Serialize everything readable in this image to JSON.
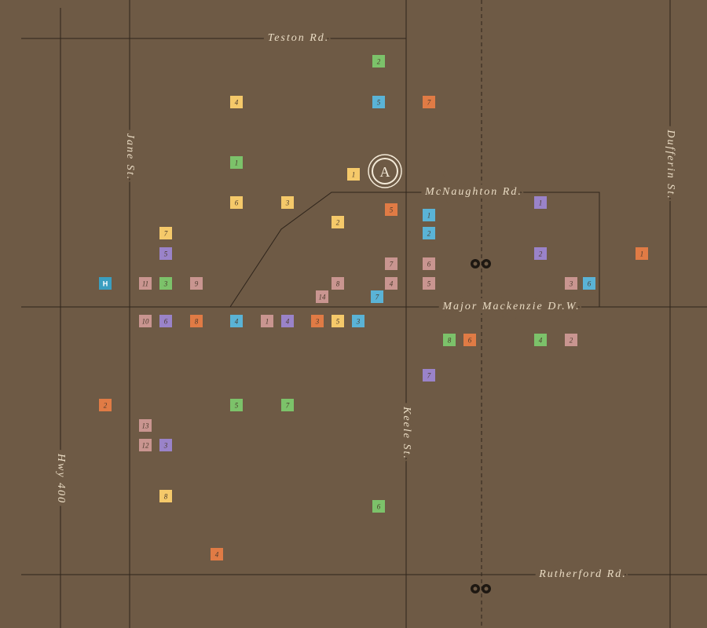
{
  "roads": [
    {
      "name": "Teston Rd."
    },
    {
      "name": "McNaughton Rd."
    },
    {
      "name": "Major Mackenzie Dr.W."
    },
    {
      "name": "Rutherford Rd."
    },
    {
      "name": "Jane St."
    },
    {
      "name": "Keele St."
    },
    {
      "name": "Dufferin St."
    },
    {
      "name": "Hwy 400"
    }
  ],
  "landmark": {
    "label": "A"
  },
  "markers": [
    {
      "label": "2",
      "color": "#7cc26a"
    },
    {
      "label": "4",
      "color": "#f5c96a"
    },
    {
      "label": "5",
      "color": "#5ab3d6"
    },
    {
      "label": "7",
      "color": "#e07b45"
    },
    {
      "label": "1",
      "color": "#7cc26a"
    },
    {
      "label": "1",
      "color": "#f5c96a"
    },
    {
      "label": "6",
      "color": "#f5c96a"
    },
    {
      "label": "3",
      "color": "#f5c96a"
    },
    {
      "label": "5",
      "color": "#e07b45"
    },
    {
      "label": "1",
      "color": "#5ab3d6"
    },
    {
      "label": "1",
      "color": "#9a83c9"
    },
    {
      "label": "2",
      "color": "#f5c96a"
    },
    {
      "label": "2",
      "color": "#5ab3d6"
    },
    {
      "label": "7",
      "color": "#f5c96a"
    },
    {
      "label": "5",
      "color": "#9a83c9"
    },
    {
      "label": "2",
      "color": "#9a83c9"
    },
    {
      "label": "1",
      "color": "#e07b45"
    },
    {
      "label": "7",
      "color": "#c99590"
    },
    {
      "label": "6",
      "color": "#c99590"
    },
    {
      "label": "H",
      "color": "#3a9ec0"
    },
    {
      "label": "11",
      "color": "#c99590"
    },
    {
      "label": "3",
      "color": "#7cc26a"
    },
    {
      "label": "9",
      "color": "#c99590"
    },
    {
      "label": "8",
      "color": "#c99590"
    },
    {
      "label": "4",
      "color": "#c99590"
    },
    {
      "label": "5",
      "color": "#c99590"
    },
    {
      "label": "3",
      "color": "#c99590"
    },
    {
      "label": "6",
      "color": "#5ab3d6"
    },
    {
      "label": "14",
      "color": "#c99590"
    },
    {
      "label": "7",
      "color": "#5ab3d6"
    },
    {
      "label": "10",
      "color": "#c99590"
    },
    {
      "label": "6",
      "color": "#9a83c9"
    },
    {
      "label": "8",
      "color": "#e07b45"
    },
    {
      "label": "4",
      "color": "#5ab3d6"
    },
    {
      "label": "1",
      "color": "#c99590"
    },
    {
      "label": "4",
      "color": "#9a83c9"
    },
    {
      "label": "3",
      "color": "#e07b45"
    },
    {
      "label": "5",
      "color": "#f5c96a"
    },
    {
      "label": "3",
      "color": "#5ab3d6"
    },
    {
      "label": "8",
      "color": "#7cc26a"
    },
    {
      "label": "6",
      "color": "#e07b45"
    },
    {
      "label": "4",
      "color": "#7cc26a"
    },
    {
      "label": "2",
      "color": "#c99590"
    },
    {
      "label": "7",
      "color": "#9a83c9"
    },
    {
      "label": "2",
      "color": "#e07b45"
    },
    {
      "label": "5",
      "color": "#7cc26a"
    },
    {
      "label": "7",
      "color": "#7cc26a"
    },
    {
      "label": "13",
      "color": "#c99590"
    },
    {
      "label": "12",
      "color": "#c99590"
    },
    {
      "label": "3",
      "color": "#9a83c9"
    },
    {
      "label": "8",
      "color": "#f5c96a"
    },
    {
      "label": "6",
      "color": "#7cc26a"
    },
    {
      "label": "4",
      "color": "#e07b45"
    }
  ]
}
